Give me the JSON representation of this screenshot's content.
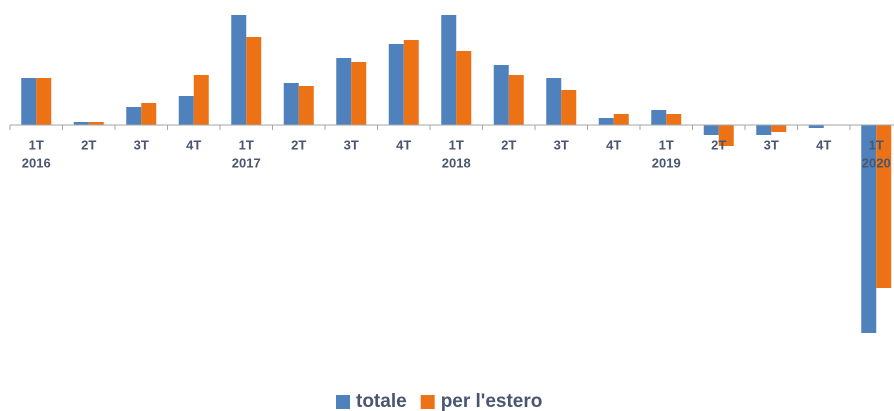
{
  "chart_data": {
    "type": "bar",
    "categories": [
      "1T",
      "2T",
      "3T",
      "4T",
      "1T",
      "2T",
      "3T",
      "4T",
      "1T",
      "2T",
      "3T",
      "4T",
      "1T",
      "2T",
      "3T",
      "4T",
      "1T"
    ],
    "years": [
      "2016",
      null,
      null,
      null,
      "2017",
      null,
      null,
      null,
      "2018",
      null,
      null,
      null,
      "2019",
      null,
      null,
      null,
      "2020"
    ],
    "series": [
      {
        "name": "totale",
        "color": "#4f81bd",
        "values": [
          4.7,
          0.3,
          1.8,
          2.9,
          11,
          4.2,
          6.7,
          8.1,
          11,
          6.0,
          4.7,
          0.7,
          1.5,
          -1.0,
          -1.0,
          -0.3,
          -20.8
        ]
      },
      {
        "name": "per l'estero",
        "color": "#ec7215",
        "values": [
          4.7,
          0.3,
          2.2,
          5.0,
          8.8,
          3.9,
          6.3,
          8.5,
          7.4,
          5.0,
          3.5,
          1.1,
          1.1,
          -2.1,
          -0.7,
          0,
          -16.3
        ]
      }
    ],
    "ylim": [
      -21,
      11
    ]
  }
}
